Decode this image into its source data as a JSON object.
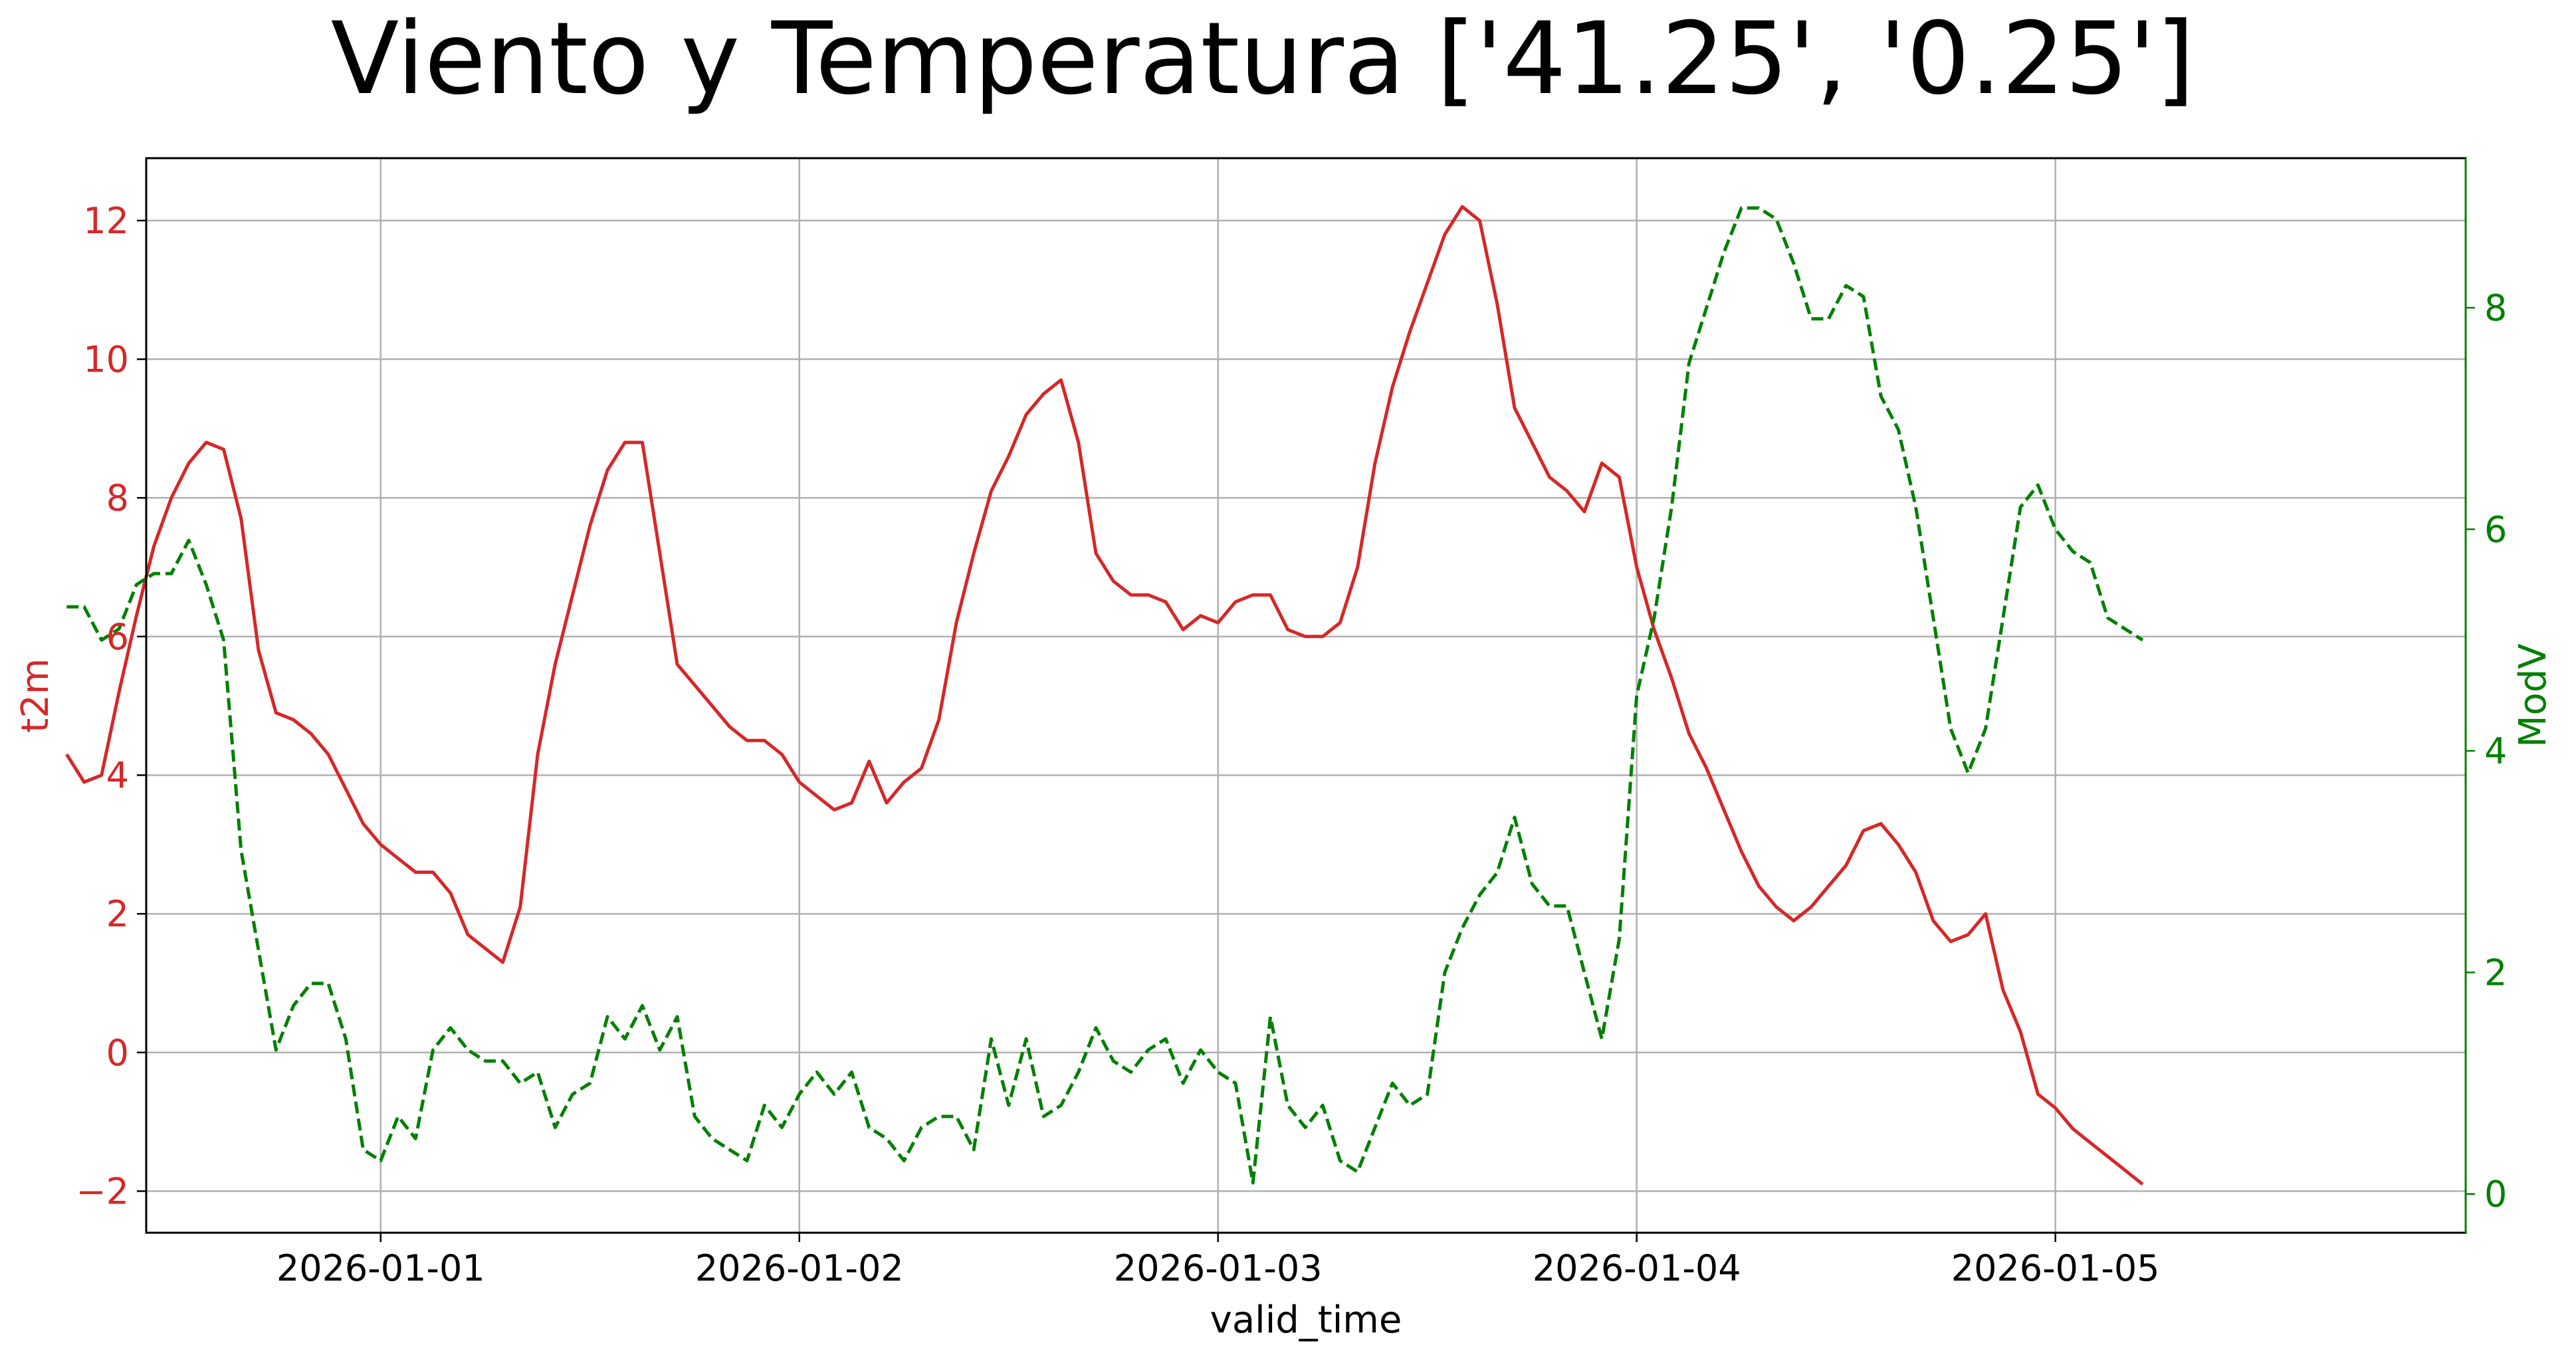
{
  "chart_data": {
    "type": "line",
    "title": "Viento y Temperatura ['41.25', '0.25']",
    "xlabel": "valid_time",
    "x_ticks": [
      "2026-01-01",
      "2026-01-02",
      "2026-01-03",
      "2026-01-04",
      "2026-01-05"
    ],
    "x_range_days": [
      -0.56,
      4.98
    ],
    "x_start": "2025-12-31 06:00",
    "x_step_hours": 1,
    "grid": true,
    "y_left": {
      "label": "t2m",
      "color": "#d62728",
      "ticks": [
        "−2",
        "0",
        "2",
        "4",
        "6",
        "8",
        "10",
        "12"
      ],
      "range": [
        -2.6,
        12.9
      ]
    },
    "y_right": {
      "label": "ModV",
      "color": "#008000",
      "ticks": [
        "0",
        "2",
        "4",
        "6",
        "8"
      ],
      "range": [
        -0.35,
        9.35
      ]
    },
    "series": [
      {
        "name": "t2m",
        "axis": "left",
        "color": "#d62728",
        "style": "solid",
        "values": [
          4.3,
          3.9,
          4.0,
          5.2,
          6.3,
          7.3,
          8.0,
          8.5,
          8.8,
          8.7,
          7.7,
          5.8,
          4.9,
          4.8,
          4.6,
          4.3,
          3.8,
          3.3,
          3.0,
          2.8,
          2.6,
          2.6,
          2.3,
          1.7,
          1.5,
          1.3,
          2.1,
          4.3,
          5.6,
          6.6,
          7.6,
          8.4,
          8.8,
          8.8,
          7.2,
          5.6,
          5.3,
          5.0,
          4.7,
          4.5,
          4.5,
          4.3,
          3.9,
          3.7,
          3.5,
          3.6,
          4.2,
          3.6,
          3.9,
          4.1,
          4.8,
          6.2,
          7.2,
          8.1,
          8.6,
          9.2,
          9.5,
          9.7,
          8.8,
          7.2,
          6.8,
          6.6,
          6.6,
          6.5,
          6.1,
          6.3,
          6.2,
          6.5,
          6.6,
          6.6,
          6.1,
          6.0,
          6.0,
          6.2,
          7.0,
          8.5,
          9.6,
          10.4,
          11.1,
          11.8,
          12.2,
          12.0,
          10.8,
          9.3,
          8.8,
          8.3,
          8.1,
          7.8,
          8.5,
          8.3,
          7.0,
          6.1,
          5.4,
          4.6,
          4.1,
          3.5,
          2.9,
          2.4,
          2.1,
          1.9,
          2.1,
          2.4,
          2.7,
          3.2,
          3.3,
          3.0,
          2.6,
          1.9,
          1.6,
          1.7,
          2.0,
          0.9,
          0.3,
          -0.6,
          -0.8,
          -1.1,
          -1.3,
          -1.5,
          -1.7,
          -1.9
        ]
      },
      {
        "name": "ModV",
        "axis": "right",
        "color": "#008000",
        "style": "dashed",
        "values": [
          5.3,
          5.3,
          5.0,
          5.1,
          5.5,
          5.6,
          5.6,
          5.9,
          5.5,
          5.0,
          3.1,
          2.2,
          1.3,
          1.7,
          1.9,
          1.9,
          1.4,
          0.4,
          0.3,
          0.7,
          0.5,
          1.3,
          1.5,
          1.3,
          1.2,
          1.2,
          1.0,
          1.1,
          0.6,
          0.9,
          1.0,
          1.6,
          1.4,
          1.7,
          1.3,
          1.6,
          0.7,
          0.5,
          0.4,
          0.3,
          0.8,
          0.6,
          0.9,
          1.1,
          0.9,
          1.1,
          0.6,
          0.5,
          0.3,
          0.6,
          0.7,
          0.7,
          0.4,
          1.4,
          0.8,
          1.4,
          0.7,
          0.8,
          1.1,
          1.5,
          1.2,
          1.1,
          1.3,
          1.4,
          1.0,
          1.3,
          1.1,
          1.0,
          0.1,
          1.6,
          0.8,
          0.6,
          0.8,
          0.3,
          0.2,
          0.6,
          1.0,
          0.8,
          0.9,
          2.0,
          2.4,
          2.7,
          2.9,
          3.4,
          2.8,
          2.6,
          2.6,
          2.0,
          1.4,
          2.3,
          4.5,
          5.2,
          6.2,
          7.5,
          8.0,
          8.5,
          8.9,
          8.9,
          8.8,
          8.4,
          7.9,
          7.9,
          8.2,
          8.1,
          7.2,
          6.9,
          6.2,
          5.2,
          4.2,
          3.8,
          4.2,
          5.2,
          6.2,
          6.4,
          6.0,
          5.8,
          5.7,
          5.2,
          5.1,
          5.0
        ]
      }
    ]
  }
}
